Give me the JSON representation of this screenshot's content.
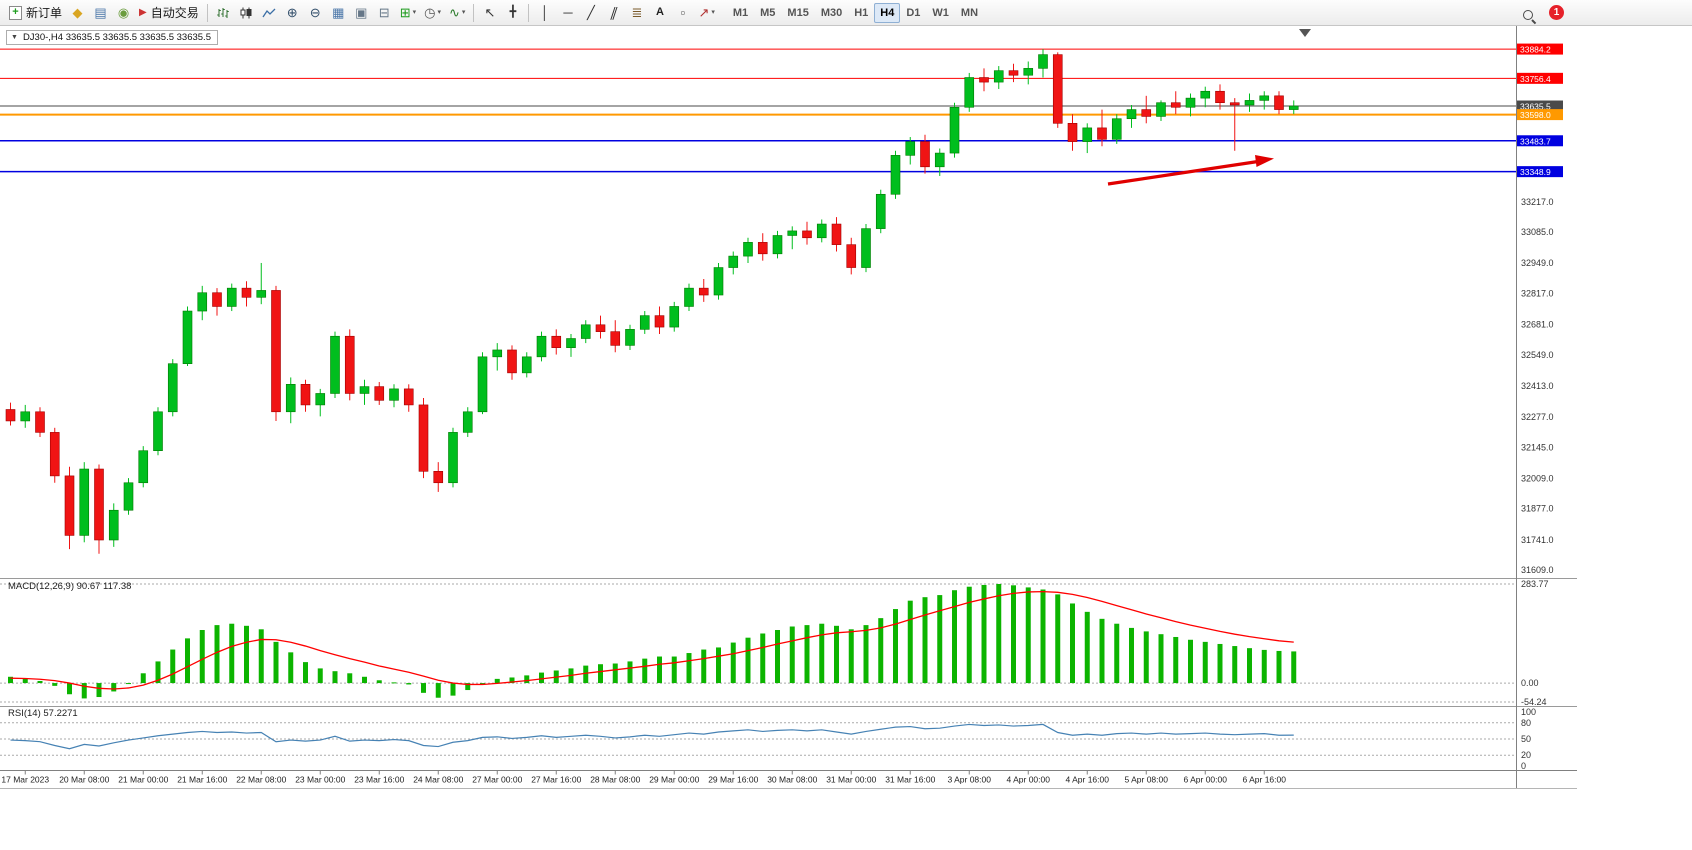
{
  "toolbar": {
    "new_order_label": "新订单",
    "autotrading_label": "自动交易",
    "timeframes": [
      "M1",
      "M5",
      "M15",
      "M30",
      "H1",
      "H4",
      "D1",
      "W1",
      "MN"
    ],
    "active_timeframe": "H4",
    "notification_count": "1"
  },
  "icons": {
    "new_order": "+",
    "profiles": "◆",
    "market_watch": "▤",
    "community": "◉",
    "autotrading_play": "▶",
    "zoom_in": "⊕",
    "zoom_out": "⊖",
    "tile_windows": "▦",
    "cascade_windows": "▣",
    "arrange_windows": "⊟",
    "new_chart": "⊞",
    "clock": "◷",
    "indicators": "∿",
    "caret": "▾",
    "cursor": "↖",
    "crosshair": "╋",
    "vertical_line": "│",
    "horizontal_line": "─",
    "trend_line": "╱",
    "channel": "∥",
    "fibonacci": "≣",
    "text_tool": "A",
    "label_tool": "▫",
    "arrows_tool": "↗",
    "one_click": "▼"
  },
  "chart": {
    "title": "DJ30-,H4 33635.5 33635.5 33635.5 33635.5",
    "symbol": "DJ30-",
    "period": "H4",
    "levels": [
      {
        "price": 33884.2,
        "label": "33884.2",
        "color": "#ff0000",
        "weight": 1
      },
      {
        "price": 33756.4,
        "label": "33756.4",
        "color": "#ff0000",
        "weight": 1
      },
      {
        "price": 33635.5,
        "label": "33635.5",
        "color": "#4a4a4a",
        "weight": 1
      },
      {
        "price": 33598.0,
        "label": "33598.0",
        "color": "#ff9900",
        "weight": 2
      },
      {
        "price": 33483.7,
        "label": "33483.7",
        "color": "#0000e0",
        "weight": 1.5
      },
      {
        "price": 33348.9,
        "label": "33348.9",
        "color": "#0000e0",
        "weight": 1.5
      }
    ],
    "y_ticks": [
      "33217.0",
      "33085.0",
      "32949.0",
      "32817.0",
      "32681.0",
      "32549.0",
      "32413.0",
      "32277.0",
      "32145.0",
      "32009.0",
      "31877.0",
      "31741.0",
      "31609.0"
    ],
    "x_labels": [
      "17 Mar 2023",
      "20 Mar 08:00",
      "21 Mar 00:00",
      "21 Mar 16:00",
      "22 Mar 08:00",
      "23 Mar 00:00",
      "23 Mar 16:00",
      "24 Mar 08:00",
      "27 Mar 00:00",
      "27 Mar 16:00",
      "28 Mar 08:00",
      "29 Mar 00:00",
      "29 Mar 16:00",
      "30 Mar 08:00",
      "31 Mar 00:00",
      "31 Mar 16:00",
      "3 Apr 08:00",
      "4 Apr 00:00",
      "4 Apr 16:00",
      "5 Apr 08:00",
      "6 Apr 00:00",
      "6 Apr 16:00"
    ]
  },
  "chart_data": {
    "type": "candlestick",
    "title": "DJ30- H4",
    "ohlc_current": {
      "open": "33635.5",
      "high": "33635.5",
      "low": "33635.5",
      "close": "33635.5"
    },
    "candles": [
      [
        32310,
        32340,
        32240,
        32260
      ],
      [
        32260,
        32330,
        32230,
        32300
      ],
      [
        32300,
        32320,
        32190,
        32210
      ],
      [
        32210,
        32230,
        31990,
        32020
      ],
      [
        32020,
        32060,
        31700,
        31760
      ],
      [
        31760,
        32080,
        31730,
        32050
      ],
      [
        32050,
        32070,
        31680,
        31740
      ],
      [
        31740,
        31900,
        31710,
        31870
      ],
      [
        31870,
        32010,
        31850,
        31990
      ],
      [
        31990,
        32150,
        31970,
        32130
      ],
      [
        32130,
        32320,
        32110,
        32300
      ],
      [
        32300,
        32530,
        32280,
        32510
      ],
      [
        32510,
        32760,
        32500,
        32740
      ],
      [
        32740,
        32850,
        32700,
        32820
      ],
      [
        32820,
        32840,
        32720,
        32760
      ],
      [
        32760,
        32860,
        32740,
        32840
      ],
      [
        32840,
        32870,
        32760,
        32800
      ],
      [
        32800,
        32950,
        32770,
        32830
      ],
      [
        32830,
        32850,
        32260,
        32300
      ],
      [
        32300,
        32450,
        32250,
        32420
      ],
      [
        32420,
        32440,
        32300,
        32330
      ],
      [
        32330,
        32400,
        32280,
        32380
      ],
      [
        32380,
        32650,
        32360,
        32630
      ],
      [
        32630,
        32660,
        32350,
        32380
      ],
      [
        32380,
        32440,
        32330,
        32410
      ],
      [
        32410,
        32430,
        32330,
        32350
      ],
      [
        32350,
        32420,
        32320,
        32400
      ],
      [
        32400,
        32420,
        32300,
        32330
      ],
      [
        32330,
        32360,
        32010,
        32040
      ],
      [
        32040,
        32080,
        31950,
        31990
      ],
      [
        31990,
        32230,
        31970,
        32210
      ],
      [
        32210,
        32320,
        32190,
        32300
      ],
      [
        32300,
        32560,
        32290,
        32540
      ],
      [
        32540,
        32600,
        32480,
        32570
      ],
      [
        32570,
        32590,
        32440,
        32470
      ],
      [
        32470,
        32560,
        32450,
        32540
      ],
      [
        32540,
        32650,
        32520,
        32630
      ],
      [
        32630,
        32660,
        32550,
        32580
      ],
      [
        32580,
        32640,
        32540,
        32620
      ],
      [
        32620,
        32700,
        32600,
        32680
      ],
      [
        32680,
        32720,
        32620,
        32650
      ],
      [
        32650,
        32700,
        32560,
        32590
      ],
      [
        32590,
        32680,
        32570,
        32660
      ],
      [
        32660,
        32740,
        32640,
        32720
      ],
      [
        32720,
        32760,
        32640,
        32670
      ],
      [
        32670,
        32780,
        32650,
        32760
      ],
      [
        32760,
        32860,
        32740,
        32840
      ],
      [
        32840,
        32880,
        32780,
        32810
      ],
      [
        32810,
        32950,
        32790,
        32930
      ],
      [
        32930,
        33000,
        32900,
        32980
      ],
      [
        32980,
        33060,
        32950,
        33040
      ],
      [
        33040,
        33080,
        32960,
        32990
      ],
      [
        32990,
        33090,
        32970,
        33070
      ],
      [
        33070,
        33110,
        33010,
        33090
      ],
      [
        33090,
        33130,
        33030,
        33060
      ],
      [
        33060,
        33140,
        33040,
        33120
      ],
      [
        33120,
        33150,
        33000,
        33030
      ],
      [
        33030,
        33060,
        32900,
        32930
      ],
      [
        32930,
        33120,
        32910,
        33100
      ],
      [
        33100,
        33270,
        33080,
        33250
      ],
      [
        33250,
        33440,
        33230,
        33420
      ],
      [
        33420,
        33500,
        33380,
        33480
      ],
      [
        33480,
        33510,
        33340,
        33370
      ],
      [
        33370,
        33450,
        33330,
        33430
      ],
      [
        33430,
        33650,
        33410,
        33630
      ],
      [
        33630,
        33780,
        33610,
        33760
      ],
      [
        33760,
        33800,
        33700,
        33740
      ],
      [
        33740,
        33810,
        33710,
        33790
      ],
      [
        33790,
        33820,
        33740,
        33770
      ],
      [
        33770,
        33830,
        33730,
        33800
      ],
      [
        33800,
        33884,
        33760,
        33860
      ],
      [
        33860,
        33870,
        33540,
        33560
      ],
      [
        33560,
        33600,
        33440,
        33480
      ],
      [
        33480,
        33560,
        33430,
        33540
      ],
      [
        33540,
        33620,
        33460,
        33490
      ],
      [
        33490,
        33600,
        33470,
        33580
      ],
      [
        33580,
        33640,
        33540,
        33620
      ],
      [
        33620,
        33680,
        33560,
        33590
      ],
      [
        33590,
        33660,
        33570,
        33650
      ],
      [
        33650,
        33700,
        33600,
        33630
      ],
      [
        33630,
        33690,
        33590,
        33670
      ],
      [
        33670,
        33720,
        33630,
        33700
      ],
      [
        33700,
        33730,
        33620,
        33650
      ],
      [
        33650,
        33670,
        33440,
        33640
      ],
      [
        33640,
        33690,
        33610,
        33660
      ],
      [
        33660,
        33700,
        33620,
        33680
      ],
      [
        33680,
        33700,
        33600,
        33620
      ],
      [
        33620,
        33660,
        33600,
        33635.5
      ]
    ],
    "macd": {
      "label": "MACD(12,26,9)",
      "values_label": "90.67 117.38",
      "axis_labels": [
        "283.77",
        "0.00",
        "-54.24"
      ],
      "max": 283.77,
      "min": -54.24,
      "histogram": [
        18,
        12,
        6,
        -8,
        -32,
        -44,
        -40,
        -24,
        -2,
        28,
        62,
        96,
        128,
        152,
        166,
        170,
        164,
        154,
        118,
        88,
        60,
        42,
        34,
        28,
        18,
        8,
        2,
        -4,
        -28,
        -42,
        -36,
        -20,
        -4,
        12,
        16,
        22,
        30,
        36,
        42,
        50,
        54,
        56,
        62,
        70,
        76,
        76,
        86,
        96,
        102,
        116,
        130,
        142,
        152,
        162,
        166,
        170,
        164,
        154,
        166,
        186,
        212,
        236,
        246,
        252,
        266,
        276,
        281,
        283.77,
        280,
        274,
        268,
        254,
        228,
        204,
        184,
        170,
        158,
        148,
        140,
        132,
        124,
        118,
        112,
        106,
        100,
        95,
        92,
        90.67
      ],
      "signal": [
        14,
        13,
        11,
        7,
        0,
        -9,
        -15,
        -17,
        -14,
        -6,
        8,
        26,
        47,
        68,
        88,
        105,
        117,
        125,
        124,
        117,
        106,
        93,
        81,
        70,
        60,
        49,
        40,
        31,
        20,
        8,
        0,
        -4,
        -4,
        -1,
        3,
        7,
        12,
        17,
        22,
        28,
        33,
        38,
        43,
        48,
        54,
        58,
        64,
        70,
        77,
        84,
        93,
        102,
        112,
        121,
        130,
        138,
        144,
        147,
        151,
        158,
        169,
        182,
        195,
        207,
        219,
        231,
        241,
        250,
        257,
        261,
        262,
        260,
        254,
        245,
        234,
        222,
        210,
        198,
        187,
        176,
        166,
        157,
        148,
        140,
        133,
        127,
        121,
        117.38
      ]
    },
    "rsi": {
      "label": "RSI(14)",
      "value_label": "57.2271",
      "axis_labels": [
        "100",
        "80",
        "50",
        "20",
        "0"
      ],
      "level_values": [
        100,
        80,
        50,
        20,
        0
      ],
      "dashed_levels": [
        80,
        50,
        20
      ],
      "values": [
        48,
        47,
        45,
        38,
        32,
        40,
        37,
        43,
        48,
        52,
        56,
        59,
        62,
        64,
        62,
        63,
        61,
        62,
        45,
        48,
        46,
        48,
        55,
        46,
        48,
        47,
        49,
        47,
        38,
        36,
        44,
        47,
        53,
        54,
        51,
        53,
        56,
        53,
        55,
        57,
        55,
        52,
        54,
        57,
        55,
        58,
        61,
        59,
        63,
        65,
        67,
        64,
        66,
        67,
        65,
        67,
        63,
        59,
        64,
        68,
        72,
        73,
        69,
        70,
        74,
        77,
        75,
        76,
        74,
        75,
        77,
        62,
        57,
        59,
        57,
        60,
        61,
        59,
        61,
        59,
        60,
        61,
        59,
        58,
        59,
        60,
        57,
        57.23
      ]
    }
  },
  "colors": {
    "up": "#00be1e",
    "up_stroke": "#007a00",
    "down": "#f01414",
    "down_stroke": "#a00000",
    "macd_hist": "#0cb400",
    "macd_signal": "#ff0000",
    "rsi_line": "#4682b4",
    "arrow": "#e00000",
    "axis_text": "#333333",
    "grid_dotted": "#aaaaaa"
  }
}
